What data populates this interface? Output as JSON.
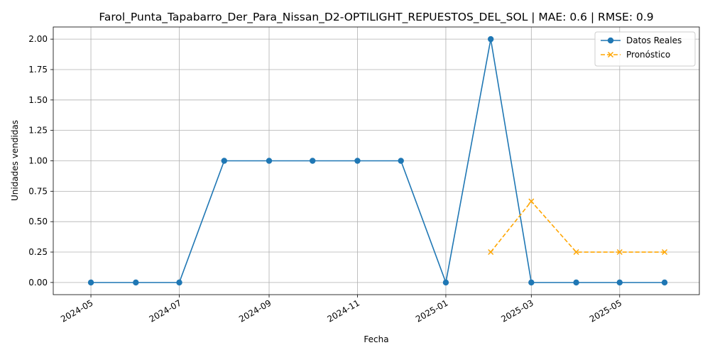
{
  "chart_data": {
    "type": "line",
    "title": "Farol_Punta_Tapabarro_Der_Para_Nissan_D2-OPTILIGHT_REPUESTOS_DEL_SOL | MAE: 0.6 | RMSE: 0.9",
    "xlabel": "Fecha",
    "ylabel": "Unidades vendidas",
    "ylim": [
      -0.1,
      2.1
    ],
    "xlim": [
      "2024-04-05",
      "2025-06-25"
    ],
    "grid": true,
    "legend_position": "top-right",
    "x_ticks": [
      "2024-05",
      "2024-07",
      "2024-09",
      "2024-11",
      "2025-01",
      "2025-03",
      "2025-05"
    ],
    "y_ticks": [
      "0.00",
      "0.25",
      "0.50",
      "0.75",
      "1.00",
      "1.25",
      "1.50",
      "1.75",
      "2.00"
    ],
    "series": [
      {
        "name": "Datos Reales",
        "color": "#1f77b4",
        "style": "solid",
        "marker": "circle",
        "x": [
          "2024-05-01",
          "2024-06-01",
          "2024-07-01",
          "2024-08-01",
          "2024-09-01",
          "2024-10-01",
          "2024-11-01",
          "2024-12-01",
          "2025-01-01",
          "2025-02-01",
          "2025-03-01",
          "2025-04-01",
          "2025-05-01",
          "2025-06-01"
        ],
        "values": [
          0,
          0,
          0,
          1,
          1,
          1,
          1,
          1,
          0,
          2,
          0,
          0,
          0,
          0
        ]
      },
      {
        "name": "Pronóstico",
        "color": "#ffa500",
        "style": "dashed",
        "marker": "x",
        "x": [
          "2025-02-01",
          "2025-03-01",
          "2025-04-01",
          "2025-05-01",
          "2025-06-01"
        ],
        "values": [
          0.25,
          0.667,
          0.25,
          0.25,
          0.25
        ]
      }
    ]
  }
}
